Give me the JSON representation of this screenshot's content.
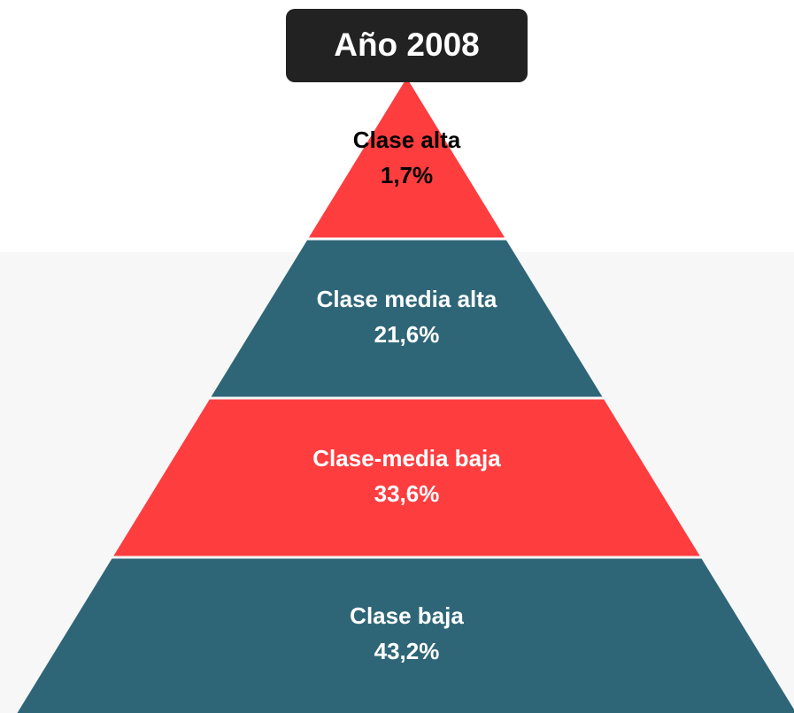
{
  "title": "Año 2008",
  "layers": [
    {
      "label": "Clase alta",
      "value": "1,7%",
      "color": "#fe3d3f",
      "text_color": "#000000"
    },
    {
      "label": "Clase media alta",
      "value": "21,6%",
      "color": "#2e6678",
      "text_color": "#ffffff"
    },
    {
      "label": "Clase-media baja",
      "value": "33,6%",
      "color": "#fe3d3f",
      "text_color": "#ffffff"
    },
    {
      "label": "Clase baja",
      "value": "43,2%",
      "color": "#2e6678",
      "text_color": "#ffffff"
    }
  ]
}
